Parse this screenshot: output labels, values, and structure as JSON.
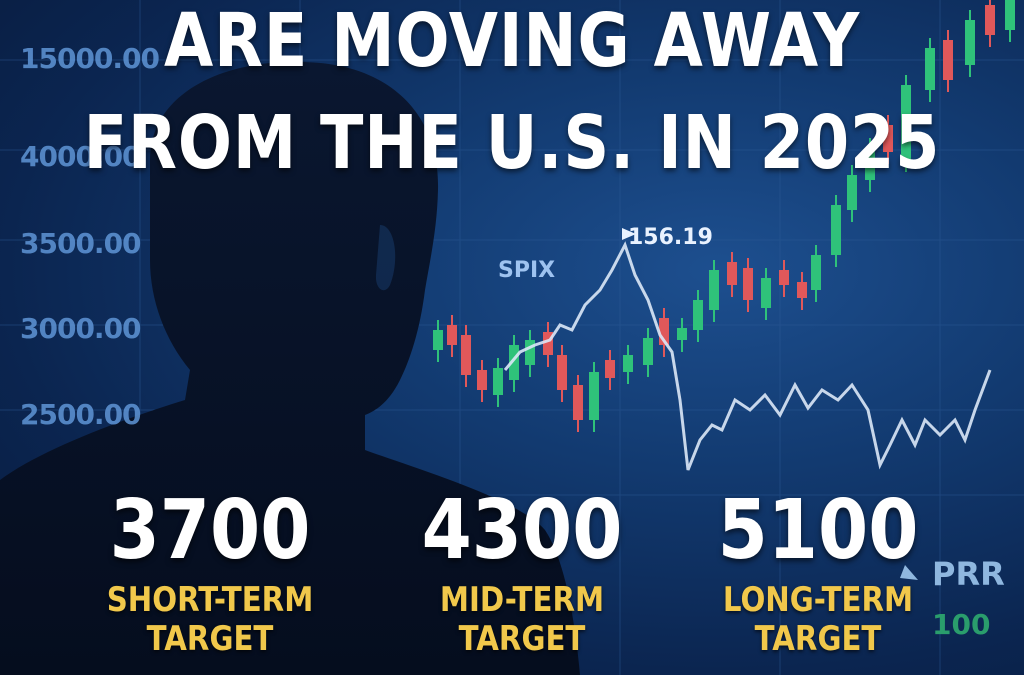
{
  "headline": {
    "line1": "ARE MOVING AWAY",
    "line2": "FROM THE U.S. IN 2025"
  },
  "chart": {
    "y_ticks": [
      "15000.00",
      "4000.00",
      "3500.00",
      "3000.00",
      "2500.00"
    ],
    "price_annotation": "156.19",
    "series_label": "SPIX",
    "corner_label": "PRR",
    "corner_value": "100",
    "colors": {
      "up": "#2fc27a",
      "down": "#e0585a",
      "line": "#dbe8f7"
    }
  },
  "targets": [
    {
      "value": "3700",
      "label_line1": "SHORT-TERM",
      "label_line2": "TARGET"
    },
    {
      "value": "4300",
      "label_line1": "MID-TERM",
      "label_line2": "TARGET"
    },
    {
      "value": "5100",
      "label_line1": "LONG-TERM",
      "label_line2": "TARGET"
    }
  ],
  "colors": {
    "label": "#f1c84b",
    "headline": "#ffffff",
    "background": "#123a70"
  }
}
